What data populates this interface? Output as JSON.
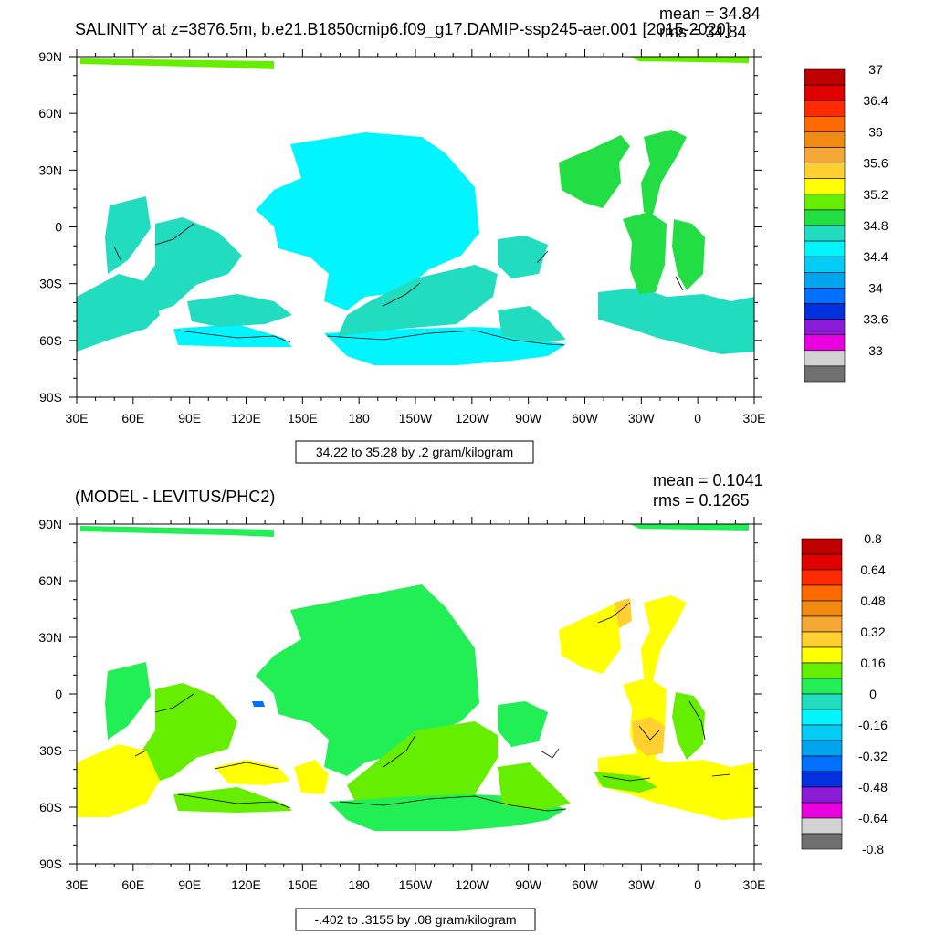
{
  "panel1": {
    "title": "SALINITY at z=3876.5m, b.e21.B1850cmip6.f09_g17.DAMIP-ssp245-aer.001 [2015-2020]",
    "mean": "mean = 34.84",
    "rms": "rms = 34.84",
    "contour_info": "34.22 to 35.28 by .2 gram/kilogram",
    "colorbar": {
      "colors": [
        "#c00000",
        "#e00000",
        "#ff2a00",
        "#ff6a00",
        "#f08a10",
        "#f5a836",
        "#ffd030",
        "#ffff00",
        "#66ee00",
        "#22dd44",
        "#22dcc0",
        "#00f5ff",
        "#00ccf5",
        "#00a5f0",
        "#0070ff",
        "#0030e0",
        "#8a1cd8",
        "#ea00e0",
        "#d2d2d2",
        "#707070"
      ],
      "labels": [
        "37",
        "36.4",
        "36",
        "35.6",
        "35.2",
        "34.8",
        "34.4",
        "34",
        "33.6",
        "33"
      ]
    }
  },
  "panel2": {
    "title": "(MODEL - LEVITUS/PHC2)",
    "mean": "mean = 0.1041",
    "rms": "rms = 0.1265",
    "contour_info": "-.402 to .3155 by .08 gram/kilogram",
    "colorbar": {
      "colors": [
        "#c00000",
        "#e00000",
        "#ff2a00",
        "#ff6a00",
        "#f08a10",
        "#f5a836",
        "#ffd030",
        "#ffff00",
        "#66ee00",
        "#22ee55",
        "#22dcc0",
        "#00f5ff",
        "#00ccf5",
        "#00a5f0",
        "#0070ff",
        "#0030e0",
        "#8a1cd8",
        "#ea00e0",
        "#d2d2d2",
        "#707070"
      ],
      "labels": [
        "0.8",
        "0.64",
        "0.48",
        "0.32",
        "0.16",
        "0",
        "-0.16",
        "-0.32",
        "-0.48",
        "-0.64",
        "-0.8"
      ]
    }
  },
  "lat_labels": [
    "90N",
    "60N",
    "30N",
    "0",
    "30S",
    "60S",
    "90S"
  ],
  "lon_labels": [
    "30E",
    "60E",
    "90E",
    "120E",
    "150E",
    "180",
    "150W",
    "120W",
    "90W",
    "60W",
    "30W",
    "0",
    "30E"
  ],
  "field_colors": {
    "p1_cyan": "#00f5ff",
    "p1_teal": "#22dcc0",
    "p1_green": "#22dd44",
    "p1_lightgreen": "#66ee00",
    "p2_green": "#22ee55",
    "p2_lightgreen": "#66ee00",
    "p2_yellow": "#ffff00",
    "p2_gold": "#ffd030",
    "p2_blue": "#0070ff"
  }
}
